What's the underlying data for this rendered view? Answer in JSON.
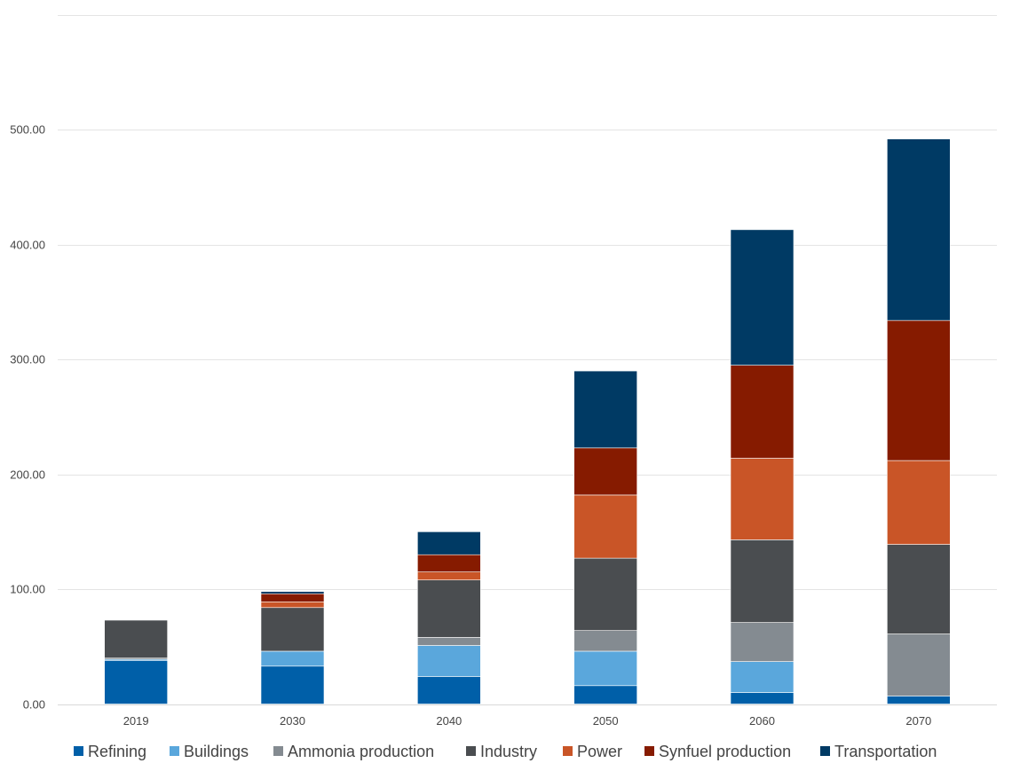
{
  "chart_data": {
    "type": "bar",
    "stacked": true,
    "title": "",
    "xlabel": "",
    "ylabel": "",
    "categories": [
      "2019",
      "2030",
      "2040",
      "2050",
      "2060",
      "2070"
    ],
    "ylim": [
      0,
      600
    ],
    "yticks": [
      0,
      100,
      200,
      300,
      400,
      500
    ],
    "ytick_labels": [
      "0.00",
      "100.00",
      "200.00",
      "300.00",
      "400.00",
      "500.00"
    ],
    "grid": true,
    "legend_position": "bottom",
    "series": [
      {
        "name": "Refining",
        "color": "#005fa8",
        "values": [
          38,
          33,
          24,
          16,
          10,
          7
        ]
      },
      {
        "name": "Buildings",
        "color": "#5aa7dc",
        "values": [
          1,
          13,
          27,
          30,
          27,
          0
        ]
      },
      {
        "name": "Ammonia production",
        "color": "#848b91",
        "values": [
          1,
          0,
          7,
          18,
          34,
          54
        ]
      },
      {
        "name": "Industry",
        "color": "#4a4d50",
        "values": [
          33,
          38,
          50,
          63,
          72,
          78
        ]
      },
      {
        "name": "Power",
        "color": "#c95527",
        "values": [
          0,
          5,
          7,
          55,
          71,
          73
        ]
      },
      {
        "name": "Synfuel production",
        "color": "#861b00",
        "values": [
          0,
          7,
          15,
          41,
          81,
          122
        ]
      },
      {
        "name": "Transportation",
        "color": "#003a64",
        "values": [
          0,
          2,
          20,
          67,
          118,
          158
        ]
      }
    ]
  }
}
